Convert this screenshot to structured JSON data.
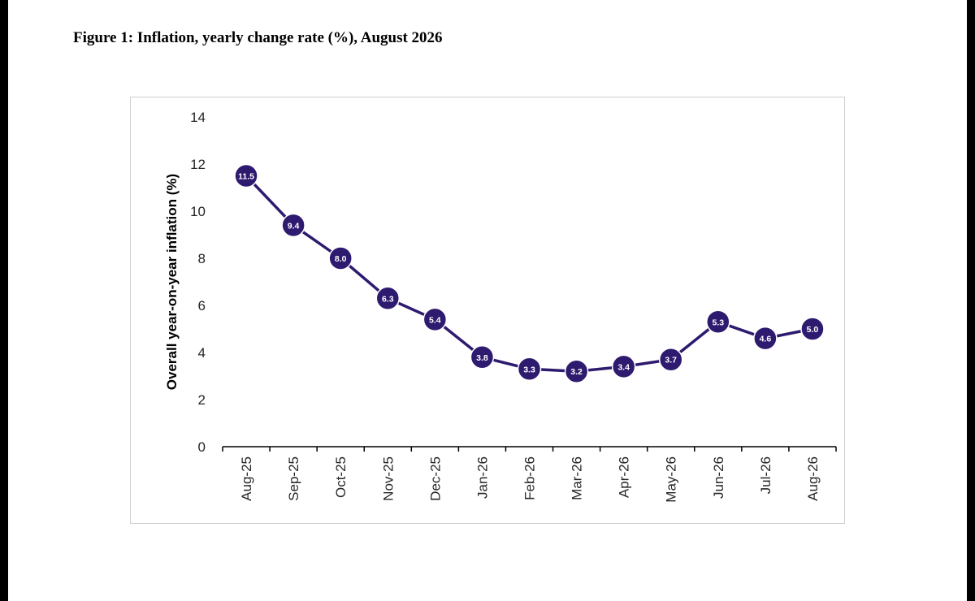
{
  "figure": {
    "title": "Figure 1: Inflation, yearly change rate (%), August 2026"
  },
  "colors": {
    "series": "#2e1a6e",
    "label_text": "#ffffff",
    "axis": "#000000",
    "tick_label": "#262626"
  },
  "chart_data": {
    "type": "line",
    "categories": [
      "Aug-25",
      "Sep-25",
      "Oct-25",
      "Nov-25",
      "Dec-25",
      "Jan-26",
      "Feb-26",
      "Mar-26",
      "Apr-26",
      "May-26",
      "Jun-26",
      "Jul-26",
      "Aug-26"
    ],
    "series": [
      {
        "values": [
          11.5,
          9.4,
          8.0,
          6.3,
          5.4,
          3.8,
          3.3,
          3.2,
          3.4,
          3.7,
          5.3,
          4.6,
          5.0
        ],
        "labels": [
          "11.5",
          "9.4",
          "8.0",
          "6.3",
          "5.4",
          "3.8",
          "3.3",
          "3.2",
          "3.4",
          "3.7",
          "5.3",
          "4.6",
          "5.0"
        ]
      }
    ],
    "ylabel": "Overall year-on-year inflation (%)",
    "xlabel": "",
    "ylim": [
      0,
      14
    ],
    "yticks": [
      "0",
      "2",
      "4",
      "6",
      "8",
      "10",
      "12",
      "14"
    ],
    "grid": false,
    "legend": "none"
  }
}
